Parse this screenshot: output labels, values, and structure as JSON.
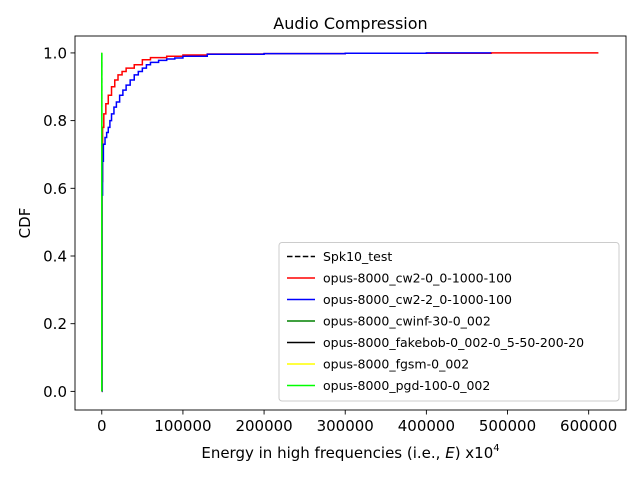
{
  "chart_data": {
    "type": "line",
    "title": "Audio Compression",
    "xlabel": "Energy in high frequencies (i.e., E) x10^4",
    "xlabel_parts": {
      "before": "Energy in high frequencies (i.e., ",
      "italic": "E",
      "after": ") x10",
      "superscript": "4"
    },
    "ylabel": "CDF",
    "xlim": [
      -33000,
      646000
    ],
    "ylim": [
      -0.055,
      1.05
    ],
    "xticks": [
      0,
      100000,
      200000,
      300000,
      400000,
      500000,
      600000
    ],
    "xtick_labels": [
      "0",
      "100000",
      "200000",
      "300000",
      "400000",
      "500000",
      "600000"
    ],
    "yticks": [
      0.0,
      0.2,
      0.4,
      0.6,
      0.8,
      1.0
    ],
    "ytick_labels": [
      "0.0",
      "0.2",
      "0.4",
      "0.6",
      "0.8",
      "1.0"
    ],
    "grid": false,
    "legend_position": "lower-right",
    "series": [
      {
        "name": "Spk10_test",
        "color": "#000000",
        "dash": "dashed",
        "x": [
          0,
          0
        ],
        "y": [
          0.0,
          1.0
        ]
      },
      {
        "name": "opus-8000_cw2-0_0-1000-100",
        "color": "#ff0000",
        "dash": "solid",
        "x": [
          0,
          300,
          1000,
          2500,
          5000,
          8000,
          12000,
          16000,
          20000,
          25000,
          30000,
          40000,
          50000,
          60000,
          80000,
          100000,
          130000,
          200000,
          300000,
          480000,
          612000
        ],
        "y": [
          0.0,
          0.62,
          0.78,
          0.82,
          0.85,
          0.875,
          0.9,
          0.92,
          0.935,
          0.945,
          0.955,
          0.965,
          0.98,
          0.986,
          0.99,
          0.994,
          0.997,
          0.998,
          0.999,
          1.0,
          1.0
        ]
      },
      {
        "name": "opus-8000_cw2-2_0-1000-100",
        "color": "#0000ff",
        "dash": "solid",
        "x": [
          0,
          300,
          1000,
          2000,
          4000,
          6000,
          8000,
          10000,
          12000,
          15000,
          18000,
          22000,
          26000,
          30000,
          35000,
          40000,
          45000,
          50000,
          55000,
          60000,
          70000,
          80000,
          90000,
          100000,
          130000,
          200000,
          300000,
          400000,
          480000
        ],
        "y": [
          0.0,
          0.58,
          0.68,
          0.73,
          0.75,
          0.765,
          0.78,
          0.8,
          0.82,
          0.84,
          0.855,
          0.875,
          0.89,
          0.905,
          0.92,
          0.935,
          0.945,
          0.955,
          0.965,
          0.972,
          0.978,
          0.982,
          0.985,
          0.99,
          0.996,
          0.998,
          0.999,
          1.0,
          1.0
        ]
      },
      {
        "name": "opus-8000_cwinf-30-0_002",
        "color": "#008000",
        "dash": "solid",
        "x": [
          0,
          0
        ],
        "y": [
          0.0,
          1.0
        ]
      },
      {
        "name": "opus-8000_fakebob-0_002-0_5-50-200-20",
        "color": "#000000",
        "dash": "solid",
        "x": [
          0,
          0
        ],
        "y": [
          0.0,
          1.0
        ]
      },
      {
        "name": "opus-8000_fgsm-0_002",
        "color": "#ffff00",
        "dash": "solid",
        "x": [
          0,
          0
        ],
        "y": [
          0.0,
          1.0
        ]
      },
      {
        "name": "opus-8000_pgd-100-0_002",
        "color": "#00ff00",
        "dash": "solid",
        "x": [
          0,
          0
        ],
        "y": [
          0.0,
          1.0
        ]
      }
    ]
  }
}
